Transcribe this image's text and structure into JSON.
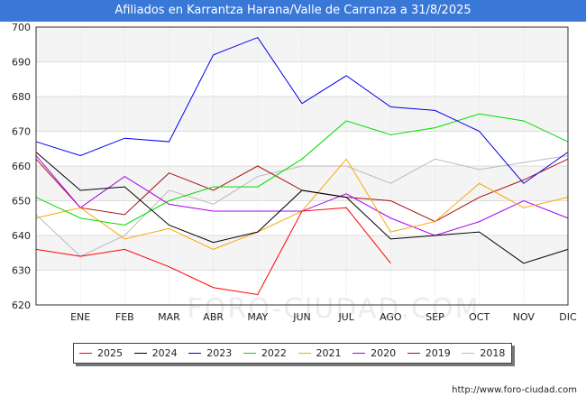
{
  "header": {
    "title": "Afiliados en Karrantza Harana/Valle de Carranza a 31/8/2025"
  },
  "footer": {
    "url": "http://www.foro-ciudad.com"
  },
  "watermark": "FORO-CIUDAD.COM",
  "chart_data": {
    "type": "line",
    "title": "Afiliados en Karrantza Harana/Valle de Carranza a 31/8/2025",
    "categories": [
      "DIC",
      "ENE",
      "FEB",
      "MAR",
      "ABR",
      "MAY",
      "JUN",
      "JUL",
      "AGO",
      "SEP",
      "OCT",
      "NOV",
      "DIC"
    ],
    "category_labels": [
      "",
      "ENE",
      "FEB",
      "MAR",
      "ABR",
      "MAY",
      "JUN",
      "JUL",
      "AGO",
      "SEP",
      "OCT",
      "NOV",
      "DIC"
    ],
    "ylim": [
      620,
      700
    ],
    "yticks": [
      620,
      630,
      640,
      650,
      660,
      670,
      680,
      690,
      700
    ],
    "grid": true,
    "legend_position": "bottom",
    "series": [
      {
        "name": "2025",
        "color": "#ff0000",
        "values": [
          636,
          634,
          636,
          631,
          625,
          623,
          647,
          648,
          632,
          null,
          null,
          null,
          null
        ]
      },
      {
        "name": "2024",
        "color": "#000000",
        "values": [
          664,
          653,
          654,
          643,
          638,
          641,
          653,
          651,
          639,
          640,
          641,
          632,
          636
        ]
      },
      {
        "name": "2023",
        "color": "#0000ee",
        "values": [
          667,
          663,
          668,
          667,
          692,
          697,
          678,
          686,
          677,
          676,
          670,
          655,
          664
        ]
      },
      {
        "name": "2022",
        "color": "#00dd00",
        "values": [
          651,
          645,
          643,
          650,
          654,
          654,
          662,
          673,
          669,
          671,
          675,
          673,
          667
        ]
      },
      {
        "name": "2021",
        "color": "#ffa500",
        "values": [
          645,
          648,
          639,
          642,
          636,
          641,
          647,
          662,
          641,
          644,
          655,
          648,
          651
        ]
      },
      {
        "name": "2020",
        "color": "#aa00ee",
        "values": [
          663,
          648,
          657,
          649,
          647,
          647,
          647,
          652,
          645,
          640,
          644,
          650,
          645
        ]
      },
      {
        "name": "2019",
        "color": "#aa1111",
        "values": [
          662,
          648,
          646,
          658,
          653,
          660,
          653,
          651,
          650,
          644,
          651,
          656,
          662
        ]
      },
      {
        "name": "2018",
        "color": "#bbbbbb",
        "values": [
          646,
          634,
          640,
          653,
          649,
          657,
          660,
          660,
          655,
          662,
          659,
          661,
          663
        ]
      }
    ]
  }
}
